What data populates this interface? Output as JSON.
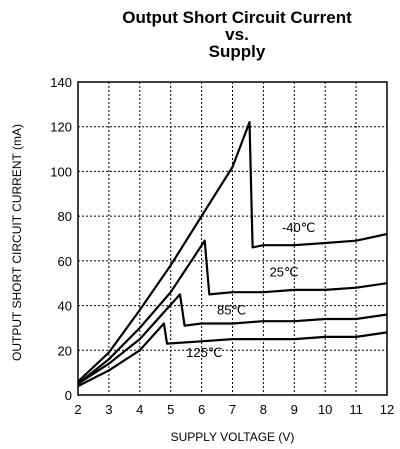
{
  "chart_data": {
    "type": "line",
    "title_lines": [
      "Output Short Circuit Current",
      "vs.",
      "Supply"
    ],
    "xlabel": "SUPPLY VOLTAGE (V)",
    "ylabel": "OUTPUT SHORT CIRCUIT CURRENT (mA)",
    "xlim": [
      2,
      12
    ],
    "ylim": [
      0,
      140
    ],
    "xticks": [
      2,
      3,
      4,
      5,
      6,
      7,
      8,
      9,
      10,
      11,
      12
    ],
    "yticks": [
      0,
      20,
      40,
      60,
      80,
      100,
      120,
      140
    ],
    "grid": true,
    "series": [
      {
        "name": "-40°C",
        "label_text": "-40℃",
        "label_at": [
          8.6,
          73
        ],
        "points": [
          [
            2,
            6
          ],
          [
            3,
            19
          ],
          [
            4,
            38
          ],
          [
            5,
            58
          ],
          [
            6,
            80
          ],
          [
            7,
            102
          ],
          [
            7.55,
            122
          ],
          [
            7.65,
            66
          ],
          [
            8,
            67
          ],
          [
            9,
            67
          ],
          [
            10,
            68
          ],
          [
            11,
            69
          ],
          [
            12,
            72
          ]
        ]
      },
      {
        "name": "25°C",
        "label_text": "25℃",
        "label_at": [
          8.2,
          53
        ],
        "points": [
          [
            2,
            5
          ],
          [
            3,
            16
          ],
          [
            4,
            30
          ],
          [
            5,
            46
          ],
          [
            6.1,
            69
          ],
          [
            6.25,
            45
          ],
          [
            7,
            46
          ],
          [
            8,
            46
          ],
          [
            9,
            47
          ],
          [
            10,
            47
          ],
          [
            11,
            48
          ],
          [
            12,
            50
          ]
        ]
      },
      {
        "name": "85°C",
        "label_text": "85℃",
        "label_at": [
          6.5,
          36
        ],
        "points": [
          [
            2,
            5
          ],
          [
            3,
            14
          ],
          [
            4,
            25
          ],
          [
            5.3,
            45
          ],
          [
            5.45,
            31
          ],
          [
            6,
            32
          ],
          [
            7,
            32
          ],
          [
            8,
            33
          ],
          [
            9,
            33
          ],
          [
            10,
            34
          ],
          [
            11,
            34
          ],
          [
            12,
            36
          ]
        ]
      },
      {
        "name": "125°C",
        "label_text": "125℃",
        "label_at": [
          5.5,
          17
        ],
        "points": [
          [
            2,
            4
          ],
          [
            3,
            11
          ],
          [
            4,
            20
          ],
          [
            4.78,
            32
          ],
          [
            4.88,
            23
          ],
          [
            6,
            24
          ],
          [
            7,
            25
          ],
          [
            8,
            25
          ],
          [
            9,
            25
          ],
          [
            10,
            26
          ],
          [
            11,
            26
          ],
          [
            12,
            28
          ]
        ]
      }
    ]
  }
}
